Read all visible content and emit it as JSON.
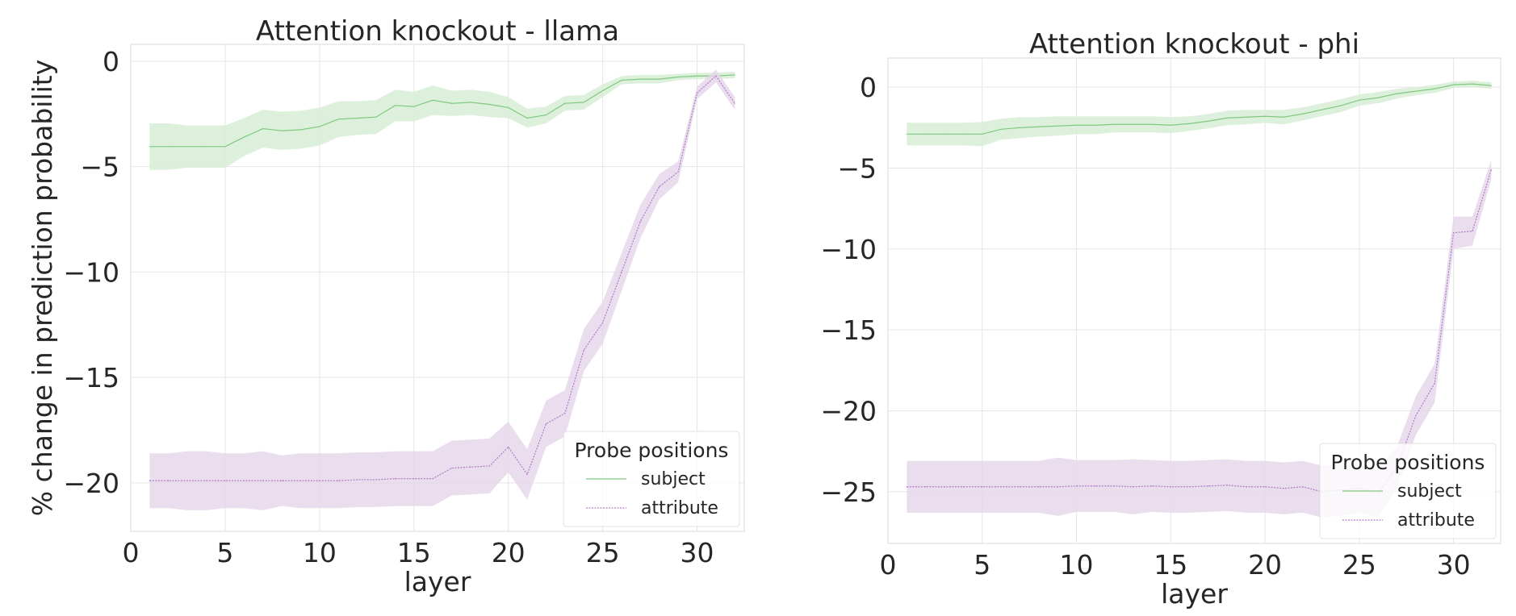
{
  "chart_data": [
    {
      "type": "line",
      "title": "Attention knockout - llama",
      "xlabel": "layer",
      "ylabel": "% change in prediction probability",
      "xlim": [
        0,
        32.5
      ],
      "ylim": [
        -22.3,
        0.8
      ],
      "xticks": [
        0,
        5,
        10,
        15,
        20,
        25,
        30
      ],
      "yticks": [
        0,
        -5,
        -10,
        -15,
        -20
      ],
      "grid": true,
      "legend": {
        "title": "Probe positions",
        "placement": "lower-right"
      },
      "x": [
        1,
        2,
        3,
        4,
        5,
        6,
        7,
        8,
        9,
        10,
        11,
        12,
        13,
        14,
        15,
        16,
        17,
        18,
        19,
        20,
        21,
        22,
        23,
        24,
        25,
        26,
        27,
        28,
        29,
        30,
        31,
        32
      ],
      "series": [
        {
          "name": "subject",
          "color": "#7fc97f",
          "band_color": "#d7edd5",
          "style": "solid",
          "values": [
            -4.05,
            -4.05,
            -4.05,
            -4.05,
            -4.05,
            -3.6,
            -3.2,
            -3.3,
            -3.25,
            -3.1,
            -2.75,
            -2.7,
            -2.65,
            -2.1,
            -2.15,
            -1.85,
            -2.0,
            -1.95,
            -2.05,
            -2.2,
            -2.7,
            -2.55,
            -2.0,
            -1.95,
            -1.4,
            -0.9,
            -0.85,
            -0.85,
            -0.75,
            -0.7,
            -0.7,
            -0.65
          ],
          "error": [
            1.1,
            1.1,
            1.0,
            1.0,
            1.0,
            0.9,
            0.9,
            0.9,
            0.9,
            0.9,
            0.85,
            0.8,
            0.8,
            0.75,
            0.7,
            0.7,
            0.6,
            0.6,
            0.6,
            0.5,
            0.45,
            0.4,
            0.35,
            0.35,
            0.3,
            0.2,
            0.2,
            0.2,
            0.15,
            0.15,
            0.15,
            0.15
          ]
        },
        {
          "name": "attribute",
          "color": "#b07cc6",
          "band_color": "#e6d7ea",
          "style": "dotted",
          "values": [
            -19.9,
            -19.9,
            -19.9,
            -19.9,
            -19.9,
            -19.9,
            -19.9,
            -19.9,
            -19.9,
            -19.9,
            -19.9,
            -19.85,
            -19.85,
            -19.8,
            -19.8,
            -19.8,
            -19.3,
            -19.25,
            -19.2,
            -18.3,
            -19.6,
            -17.2,
            -16.7,
            -13.7,
            -12.4,
            -10.0,
            -7.6,
            -5.95,
            -5.25,
            -1.5,
            -0.7,
            -2.0
          ],
          "error": [
            1.3,
            1.3,
            1.4,
            1.4,
            1.3,
            1.3,
            1.4,
            1.2,
            1.3,
            1.3,
            1.3,
            1.3,
            1.3,
            1.3,
            1.3,
            1.3,
            1.3,
            1.3,
            1.3,
            1.2,
            1.2,
            1.1,
            1.1,
            1.0,
            1.0,
            0.9,
            0.8,
            0.6,
            0.5,
            0.3,
            0.3,
            0.3
          ]
        }
      ]
    },
    {
      "type": "line",
      "title": "Attention knockout - phi",
      "xlabel": "layer",
      "ylabel": "",
      "xlim": [
        0,
        32.5
      ],
      "ylim": [
        -28.2,
        1.8
      ],
      "xticks": [
        0,
        5,
        10,
        15,
        20,
        25,
        30
      ],
      "yticks": [
        0,
        -5,
        -10,
        -15,
        -20,
        -25
      ],
      "grid": true,
      "legend": {
        "title": "Probe positions",
        "placement": "lower-right"
      },
      "x": [
        1,
        2,
        3,
        4,
        5,
        6,
        7,
        8,
        9,
        10,
        11,
        12,
        13,
        14,
        15,
        16,
        17,
        18,
        19,
        20,
        21,
        22,
        23,
        24,
        25,
        26,
        27,
        28,
        29,
        30,
        31,
        32
      ],
      "series": [
        {
          "name": "subject",
          "color": "#7fc97f",
          "band_color": "#d7edd5",
          "style": "solid",
          "values": [
            -2.9,
            -2.9,
            -2.9,
            -2.9,
            -2.9,
            -2.6,
            -2.5,
            -2.45,
            -2.4,
            -2.35,
            -2.35,
            -2.3,
            -2.3,
            -2.3,
            -2.35,
            -2.25,
            -2.1,
            -1.9,
            -1.85,
            -1.8,
            -1.85,
            -1.65,
            -1.4,
            -1.15,
            -0.8,
            -0.65,
            -0.4,
            -0.25,
            -0.1,
            0.15,
            0.2,
            0.1
          ],
          "error": [
            0.7,
            0.7,
            0.7,
            0.7,
            0.75,
            0.65,
            0.65,
            0.6,
            0.6,
            0.55,
            0.55,
            0.5,
            0.5,
            0.5,
            0.5,
            0.45,
            0.45,
            0.45,
            0.45,
            0.4,
            0.45,
            0.4,
            0.4,
            0.4,
            0.35,
            0.35,
            0.3,
            0.25,
            0.25,
            0.2,
            0.2,
            0.2
          ]
        },
        {
          "name": "attribute",
          "color": "#b07cc6",
          "band_color": "#e6d7ea",
          "style": "dotted",
          "values": [
            -24.7,
            -24.7,
            -24.7,
            -24.7,
            -24.7,
            -24.7,
            -24.7,
            -24.7,
            -24.7,
            -24.65,
            -24.65,
            -24.65,
            -24.7,
            -24.65,
            -24.7,
            -24.7,
            -24.65,
            -24.6,
            -24.7,
            -24.7,
            -24.8,
            -24.7,
            -25.0,
            -24.9,
            -24.8,
            -25.1,
            -23.5,
            -20.3,
            -18.3,
            -9.0,
            -8.9,
            -5.1
          ],
          "error": [
            1.6,
            1.6,
            1.6,
            1.6,
            1.6,
            1.6,
            1.6,
            1.6,
            1.8,
            1.6,
            1.6,
            1.6,
            1.7,
            1.6,
            1.6,
            1.6,
            1.6,
            1.6,
            1.6,
            1.6,
            1.6,
            1.6,
            1.6,
            1.6,
            1.5,
            1.5,
            1.3,
            1.2,
            1.2,
            1.0,
            0.9,
            0.6
          ]
        }
      ]
    }
  ]
}
